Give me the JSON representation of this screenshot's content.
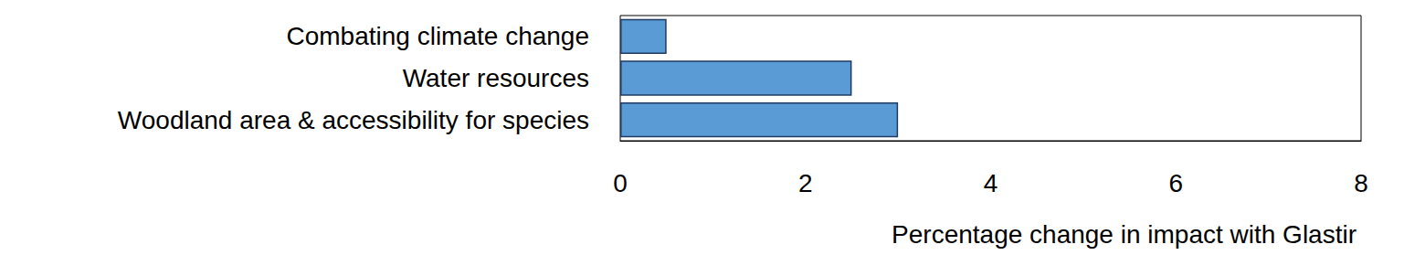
{
  "chart_data": {
    "type": "bar",
    "orientation": "horizontal",
    "categories": [
      "Combating climate change",
      "Water resources",
      "Woodland area & accessibility for species"
    ],
    "values": [
      0.5,
      2.5,
      3.0
    ],
    "color": "#5b9bd5",
    "x_label": "Percentage change in impact with Glastir",
    "xlim": [
      0,
      8
    ],
    "xticks": [
      0,
      2,
      4,
      6,
      8
    ],
    "grid": false
  }
}
